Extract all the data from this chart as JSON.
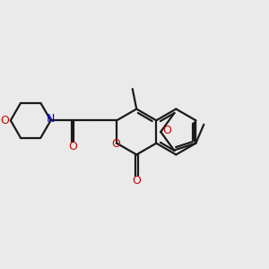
{
  "bg_color": "#eaeaea",
  "bond_color": "#1a1a1a",
  "oxygen_color": "#cc0000",
  "nitrogen_color": "#0000cc",
  "lw": 1.6,
  "xlim": [
    0,
    10
  ],
  "ylim": [
    0,
    10
  ],
  "figsize": [
    3.0,
    3.0
  ],
  "dpi": 100
}
